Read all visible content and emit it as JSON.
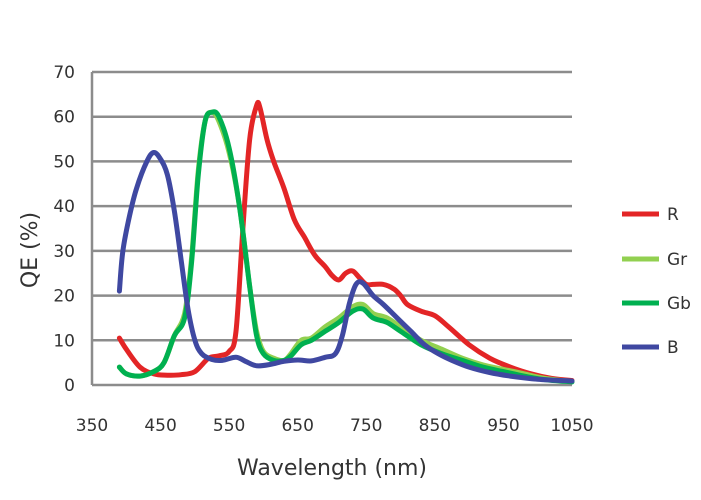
{
  "chart_data": {
    "type": "line",
    "xlabel": "Wavelength (nm)",
    "ylabel": "QE (%)",
    "xlim": [
      350,
      1050
    ],
    "ylim": [
      0,
      70
    ],
    "x_ticks": [
      350,
      450,
      550,
      650,
      750,
      850,
      950,
      1050
    ],
    "y_ticks": [
      0,
      10,
      20,
      30,
      40,
      50,
      60,
      70
    ],
    "grid": "horizontal",
    "legend_position": "right",
    "series": [
      {
        "name": "R",
        "color": "#e32526",
        "points": [
          [
            390,
            10.5
          ],
          [
            400,
            8
          ],
          [
            420,
            4
          ],
          [
            440,
            2.5
          ],
          [
            460,
            2.2
          ],
          [
            480,
            2.3
          ],
          [
            500,
            3
          ],
          [
            520,
            6
          ],
          [
            535,
            6.5
          ],
          [
            550,
            7.5
          ],
          [
            560,
            12
          ],
          [
            570,
            35
          ],
          [
            580,
            55
          ],
          [
            590,
            62.5
          ],
          [
            595,
            62
          ],
          [
            605,
            55
          ],
          [
            615,
            50
          ],
          [
            630,
            44
          ],
          [
            645,
            37
          ],
          [
            660,
            33
          ],
          [
            675,
            29
          ],
          [
            690,
            26.5
          ],
          [
            700,
            24.5
          ],
          [
            710,
            23.5
          ],
          [
            720,
            25
          ],
          [
            730,
            25.5
          ],
          [
            740,
            24
          ],
          [
            750,
            22.5
          ],
          [
            760,
            22.5
          ],
          [
            775,
            22.5
          ],
          [
            790,
            21.5
          ],
          [
            800,
            20
          ],
          [
            810,
            18
          ],
          [
            830,
            16.5
          ],
          [
            850,
            15.5
          ],
          [
            870,
            13
          ],
          [
            900,
            9
          ],
          [
            930,
            6
          ],
          [
            960,
            4
          ],
          [
            990,
            2.5
          ],
          [
            1020,
            1.5
          ],
          [
            1050,
            1
          ]
        ]
      },
      {
        "name": "Gr",
        "color": "#92d050",
        "points": [
          [
            390,
            4
          ],
          [
            400,
            2.5
          ],
          [
            420,
            2
          ],
          [
            440,
            3
          ],
          [
            455,
            5
          ],
          [
            470,
            11
          ],
          [
            485,
            16
          ],
          [
            495,
            28
          ],
          [
            505,
            48
          ],
          [
            515,
            59
          ],
          [
            525,
            61
          ],
          [
            535,
            59
          ],
          [
            550,
            52
          ],
          [
            565,
            40
          ],
          [
            580,
            22
          ],
          [
            590,
            12
          ],
          [
            600,
            7.5
          ],
          [
            615,
            6
          ],
          [
            630,
            5.5
          ],
          [
            640,
            7
          ],
          [
            655,
            10
          ],
          [
            670,
            10.5
          ],
          [
            690,
            13
          ],
          [
            710,
            15
          ],
          [
            730,
            17.5
          ],
          [
            745,
            18
          ],
          [
            760,
            16
          ],
          [
            780,
            15
          ],
          [
            800,
            13
          ],
          [
            830,
            10
          ],
          [
            860,
            8
          ],
          [
            890,
            6
          ],
          [
            920,
            4.5
          ],
          [
            950,
            3.5
          ],
          [
            980,
            2.5
          ],
          [
            1010,
            1.5
          ],
          [
            1050,
            0.8
          ]
        ]
      },
      {
        "name": "Gb",
        "color": "#00b050",
        "points": [
          [
            390,
            4
          ],
          [
            400,
            2.5
          ],
          [
            420,
            2
          ],
          [
            440,
            3
          ],
          [
            455,
            5
          ],
          [
            470,
            11
          ],
          [
            485,
            15
          ],
          [
            495,
            27
          ],
          [
            505,
            47
          ],
          [
            515,
            59
          ],
          [
            525,
            61
          ],
          [
            535,
            60
          ],
          [
            550,
            53
          ],
          [
            565,
            40
          ],
          [
            580,
            22
          ],
          [
            590,
            11
          ],
          [
            600,
            7
          ],
          [
            615,
            5.5
          ],
          [
            630,
            5.5
          ],
          [
            640,
            6.5
          ],
          [
            655,
            9
          ],
          [
            670,
            10
          ],
          [
            690,
            12
          ],
          [
            710,
            14
          ],
          [
            730,
            16.5
          ],
          [
            745,
            17
          ],
          [
            760,
            15
          ],
          [
            780,
            14
          ],
          [
            800,
            12
          ],
          [
            830,
            9
          ],
          [
            860,
            7
          ],
          [
            890,
            5.5
          ],
          [
            920,
            4
          ],
          [
            950,
            3
          ],
          [
            980,
            2
          ],
          [
            1010,
            1.2
          ],
          [
            1050,
            0.7
          ]
        ]
      },
      {
        "name": "B",
        "color": "#3f48a1",
        "points": [
          [
            390,
            21
          ],
          [
            395,
            30
          ],
          [
            405,
            38
          ],
          [
            415,
            44
          ],
          [
            430,
            50
          ],
          [
            440,
            52
          ],
          [
            450,
            50.5
          ],
          [
            460,
            47
          ],
          [
            470,
            39
          ],
          [
            480,
            28
          ],
          [
            490,
            17
          ],
          [
            500,
            10
          ],
          [
            510,
            7
          ],
          [
            525,
            5.7
          ],
          [
            540,
            5.5
          ],
          [
            560,
            6.2
          ],
          [
            575,
            5.2
          ],
          [
            590,
            4.3
          ],
          [
            610,
            4.6
          ],
          [
            630,
            5.3
          ],
          [
            650,
            5.6
          ],
          [
            670,
            5.4
          ],
          [
            690,
            6.2
          ],
          [
            705,
            7
          ],
          [
            715,
            11
          ],
          [
            725,
            18
          ],
          [
            735,
            22.5
          ],
          [
            745,
            22.8
          ],
          [
            760,
            20
          ],
          [
            775,
            18
          ],
          [
            795,
            15
          ],
          [
            815,
            12
          ],
          [
            835,
            9
          ],
          [
            855,
            7
          ],
          [
            875,
            5.5
          ],
          [
            900,
            4
          ],
          [
            930,
            2.8
          ],
          [
            960,
            2
          ],
          [
            1000,
            1.3
          ],
          [
            1050,
            0.9
          ]
        ]
      }
    ]
  }
}
